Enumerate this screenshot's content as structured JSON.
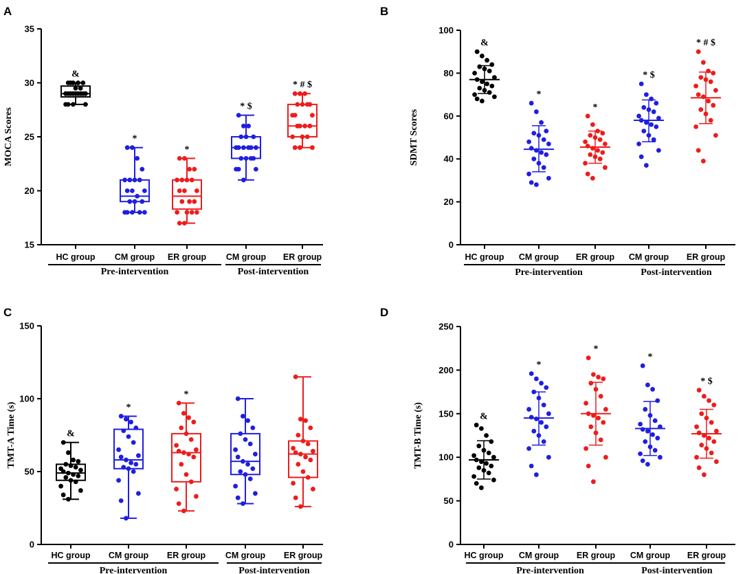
{
  "colors": {
    "HC": "#000000",
    "CM": "#1f1fe0",
    "ER": "#ee1c1c"
  },
  "chart_data": [
    {
      "panel": "A",
      "type": "box",
      "title": "",
      "ylabel": "MOCA Scores",
      "ylim": [
        15,
        35
      ],
      "yticks": [
        15,
        20,
        25,
        30,
        35
      ],
      "groups": [
        {
          "label": "HC group",
          "color": "HC",
          "annotation": "&",
          "box": {
            "min": 28,
            "q1": 28.7,
            "median": 29,
            "q3": 29.7,
            "max": 30
          },
          "points": [
            30,
            30,
            30,
            30,
            30,
            29.5,
            29.5,
            29,
            29,
            29,
            29,
            29,
            29,
            29,
            29,
            29,
            28,
            28,
            28,
            28
          ]
        },
        {
          "label": "CM group",
          "color": "CM",
          "annotation": "*",
          "box": {
            "min": 18,
            "q1": 19,
            "median": 19.5,
            "q3": 21,
            "max": 24
          },
          "points": [
            24,
            24,
            23,
            22,
            21,
            21,
            21,
            21,
            20,
            20,
            20,
            19.5,
            19,
            19,
            19,
            18,
            18,
            18,
            18,
            18
          ]
        },
        {
          "label": "ER group",
          "color": "ER",
          "annotation": "*",
          "box": {
            "min": 17,
            "q1": 18.3,
            "median": 19.5,
            "q3": 21,
            "max": 23
          },
          "points": [
            23,
            23,
            22,
            22,
            21,
            21,
            21,
            21,
            20,
            20,
            20,
            19,
            19,
            19,
            18,
            18,
            18,
            18,
            17,
            17
          ]
        },
        {
          "label": "CM group",
          "color": "CM",
          "annotation": "* $",
          "box": {
            "min": 21,
            "q1": 23,
            "median": 24,
            "q3": 25,
            "max": 27
          },
          "points": [
            27,
            26,
            26,
            25,
            25,
            25,
            24,
            24,
            24,
            24,
            24,
            24,
            23,
            23,
            23,
            23,
            22,
            22,
            22,
            21
          ]
        },
        {
          "label": "ER group",
          "color": "ER",
          "annotation": "* # $",
          "box": {
            "min": 24,
            "q1": 25,
            "median": 26,
            "q3": 28,
            "max": 29
          },
          "points": [
            29,
            29,
            29,
            28,
            28,
            28,
            28,
            27,
            27,
            27,
            26,
            26,
            26,
            26,
            25,
            25,
            25,
            24,
            24,
            24
          ]
        }
      ],
      "group_labels": [
        "Pre-intervention",
        "Post-intervention"
      ]
    },
    {
      "panel": "B",
      "type": "scatter",
      "title": "",
      "ylabel": "SDMT Scores",
      "ylim": [
        0,
        100
      ],
      "yticks": [
        0,
        20,
        40,
        60,
        80,
        100
      ],
      "groups": [
        {
          "label": "HC group",
          "color": "HC",
          "annotation": "&",
          "mean": 77,
          "sd": [
            70.5,
            83.5
          ],
          "points": [
            90,
            88,
            86,
            84,
            83,
            82,
            81,
            80,
            78,
            77,
            76,
            75,
            74,
            73,
            72,
            71,
            70,
            69,
            68,
            67
          ]
        },
        {
          "label": "CM group",
          "color": "CM",
          "annotation": "*",
          "mean": 44.5,
          "sd": [
            34,
            55.5
          ],
          "points": [
            66,
            62,
            57,
            53,
            52,
            51,
            49,
            48,
            47,
            45,
            44,
            43,
            42,
            40,
            38,
            36,
            33,
            31,
            29,
            28
          ]
        },
        {
          "label": "ER group",
          "color": "ER",
          "annotation": "*",
          "mean": 45.5,
          "sd": [
            38,
            53
          ],
          "points": [
            60,
            56,
            53,
            52,
            51,
            50,
            49,
            48,
            47,
            46,
            45,
            44,
            43,
            42,
            41,
            40,
            38,
            36,
            33,
            31
          ]
        },
        {
          "label": "CM group",
          "color": "CM",
          "annotation": "* $",
          "mean": 58,
          "sd": [
            48,
            67.5
          ],
          "points": [
            75,
            70,
            68,
            66,
            64,
            63,
            62,
            60,
            59,
            58,
            57,
            56,
            55,
            53,
            51,
            49,
            47,
            44,
            41,
            37
          ]
        },
        {
          "label": "ER group",
          "color": "ER",
          "annotation": "* # $",
          "mean": 68.5,
          "sd": [
            56.5,
            80.5
          ],
          "points": [
            90,
            85,
            81,
            80,
            78,
            77,
            76,
            74,
            72,
            70,
            69,
            67,
            65,
            63,
            61,
            58,
            55,
            51,
            44,
            39
          ]
        }
      ],
      "group_labels": [
        "Pre-intervention",
        "Post-intervention"
      ]
    },
    {
      "panel": "C",
      "type": "box",
      "title": "",
      "ylabel": "TMT-A Time (s)",
      "ylim": [
        0,
        150
      ],
      "yticks": [
        0,
        50,
        100,
        150
      ],
      "groups": [
        {
          "label": "HC group",
          "color": "HC",
          "annotation": "&",
          "box": {
            "min": 31,
            "q1": 44,
            "median": 49,
            "q3": 55,
            "max": 70
          },
          "points": [
            70,
            63,
            58,
            57,
            55,
            54,
            53,
            52,
            51,
            50,
            49,
            48,
            47,
            46,
            44,
            43,
            40,
            37,
            34,
            31
          ]
        },
        {
          "label": "CM group",
          "color": "CM",
          "annotation": "*",
          "box": {
            "min": 18,
            "q1": 52,
            "median": 58,
            "q3": 79,
            "max": 88
          },
          "points": [
            88,
            86,
            84,
            80,
            78,
            74,
            70,
            65,
            61,
            60,
            58,
            56,
            55,
            53,
            52,
            50,
            44,
            35,
            30,
            18
          ]
        },
        {
          "label": "ER group",
          "color": "ER",
          "annotation": "*",
          "box": {
            "min": 23,
            "q1": 43,
            "median": 63,
            "q3": 76,
            "max": 97
          },
          "points": [
            97,
            90,
            87,
            84,
            80,
            76,
            72,
            68,
            65,
            64,
            63,
            62,
            60,
            55,
            48,
            43,
            38,
            33,
            28,
            23
          ]
        },
        {
          "label": "CM group",
          "color": "CM",
          "annotation": "",
          "box": {
            "min": 28,
            "q1": 48,
            "median": 57,
            "q3": 76,
            "max": 100
          },
          "points": [
            100,
            88,
            85,
            80,
            76,
            72,
            69,
            65,
            62,
            60,
            57,
            55,
            52,
            50,
            48,
            45,
            40,
            35,
            32,
            28
          ]
        },
        {
          "label": "ER group",
          "color": "ER",
          "annotation": "",
          "box": {
            "min": 26,
            "q1": 46,
            "median": 62,
            "q3": 71,
            "max": 115
          },
          "points": [
            115,
            86,
            85,
            80,
            75,
            71,
            69,
            66,
            64,
            63,
            62,
            60,
            58,
            55,
            50,
            46,
            42,
            38,
            32,
            26
          ]
        }
      ],
      "group_labels": [
        "Pre-intervention",
        "Post-intervention"
      ]
    },
    {
      "panel": "D",
      "type": "scatter",
      "title": "",
      "ylabel": "TMT-B Time (s)",
      "ylim": [
        0,
        250
      ],
      "yticks": [
        0,
        50,
        100,
        150,
        200,
        250
      ],
      "groups": [
        {
          "label": "HC group",
          "color": "HC",
          "annotation": "&",
          "mean": 97,
          "sd": [
            75,
            119
          ],
          "points": [
            137,
            133,
            125,
            118,
            113,
            108,
            105,
            102,
            100,
            97,
            95,
            93,
            90,
            88,
            85,
            82,
            78,
            74,
            70,
            65
          ]
        },
        {
          "label": "CM group",
          "color": "CM",
          "annotation": "*",
          "mean": 145,
          "sd": [
            114,
            175
          ],
          "points": [
            196,
            190,
            185,
            180,
            175,
            168,
            160,
            155,
            150,
            146,
            144,
            140,
            135,
            130,
            125,
            118,
            110,
            100,
            90,
            80
          ]
        },
        {
          "label": "ER group",
          "color": "ER",
          "annotation": "*",
          "mean": 150,
          "sd": [
            114,
            186
          ],
          "points": [
            214,
            195,
            192,
            190,
            185,
            178,
            170,
            162,
            155,
            150,
            148,
            145,
            140,
            135,
            128,
            120,
            110,
            100,
            90,
            72
          ]
        },
        {
          "label": "CM group",
          "color": "CM",
          "annotation": "*",
          "mean": 133,
          "sd": [
            102,
            164
          ],
          "points": [
            205,
            183,
            178,
            165,
            155,
            148,
            142,
            138,
            135,
            132,
            130,
            126,
            122,
            118,
            112,
            108,
            104,
            100,
            96,
            92
          ]
        },
        {
          "label": "ER group",
          "color": "ER",
          "annotation": "* $",
          "mean": 127,
          "sd": [
            99,
            155
          ],
          "points": [
            177,
            170,
            165,
            160,
            150,
            145,
            140,
            135,
            130,
            128,
            125,
            122,
            118,
            114,
            110,
            105,
            100,
            95,
            88,
            80
          ]
        }
      ],
      "group_labels": [
        "Pre-intervention",
        "Post-intervention"
      ]
    }
  ]
}
